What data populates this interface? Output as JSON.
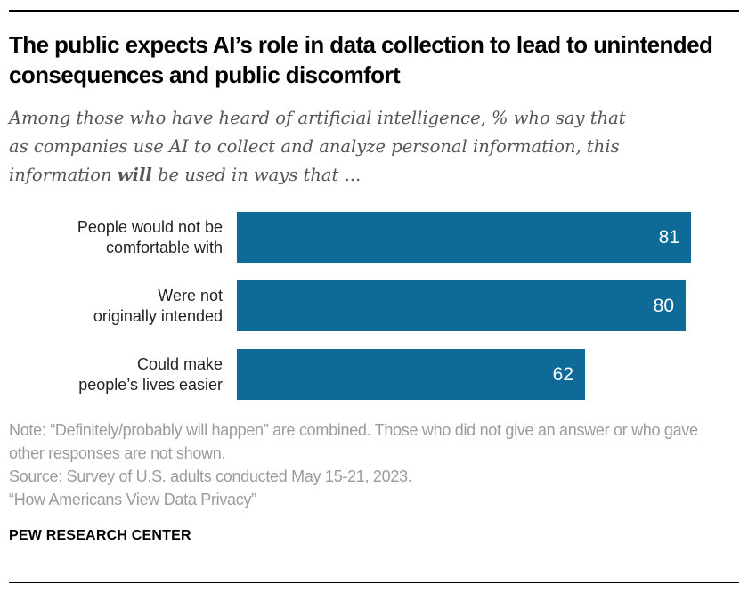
{
  "chart_data": {
    "type": "bar",
    "orientation": "horizontal",
    "title": "The public expects AI’s role in data collection to lead to unintended consequences and public discomfort",
    "subtitle_parts": {
      "pre": "Among those who have heard of artificial intelligence, % who say that as companies use AI to collect and analyze personal information, this information ",
      "emphasis": "will",
      "post": " be used in ways that ..."
    },
    "categories": [
      "People would not be comfortable with",
      "Were not originally intended",
      "Could make people’s lives easier"
    ],
    "category_lines": [
      [
        "People would not be",
        "comfortable with"
      ],
      [
        "Were not",
        "originally intended"
      ],
      [
        "Could make",
        "people’s lives easier"
      ]
    ],
    "values": [
      81,
      80,
      62
    ],
    "xlim": [
      0,
      100
    ],
    "bar_color": "#0e6a97",
    "value_label_color": "#ffffff",
    "grid": false,
    "legend": false
  },
  "footer": {
    "note": "Note: “Definitely/probably will happen” are combined. Those who did not give an answer or who gave other responses are not shown.",
    "source": "Source: Survey of U.S. adults conducted May 15-21, 2023.",
    "report_title": "“How Americans View Data Privacy”",
    "brand": "PEW RESEARCH CENTER"
  }
}
